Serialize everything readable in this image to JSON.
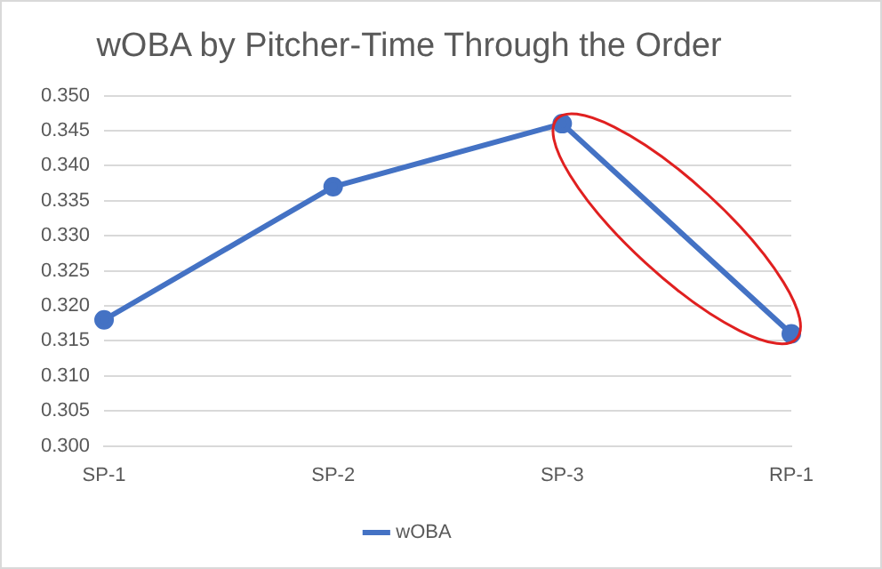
{
  "chart_data": {
    "type": "line",
    "title": "wOBA by Pitcher-Time Through the Order",
    "categories": [
      "SP-1",
      "SP-2",
      "SP-3",
      "RP-1"
    ],
    "series": [
      {
        "name": "wOBA",
        "color": "#4472c4",
        "values": [
          0.318,
          0.337,
          0.346,
          0.316
        ]
      }
    ],
    "ylim": [
      0.3,
      0.35
    ],
    "yticks": [
      {
        "value": 0.3,
        "label": "0.300"
      },
      {
        "value": 0.305,
        "label": "0.305"
      },
      {
        "value": 0.31,
        "label": "0.310"
      },
      {
        "value": 0.315,
        "label": "0.315"
      },
      {
        "value": 0.32,
        "label": "0.320"
      },
      {
        "value": 0.325,
        "label": "0.325"
      },
      {
        "value": 0.33,
        "label": "0.330"
      },
      {
        "value": 0.335,
        "label": "0.335"
      },
      {
        "value": 0.34,
        "label": "0.340"
      },
      {
        "value": 0.345,
        "label": "0.345"
      },
      {
        "value": 0.35,
        "label": "0.350"
      }
    ],
    "grid": "y",
    "legend": "bottom",
    "marker": "circle",
    "line_style": "solid"
  }
}
